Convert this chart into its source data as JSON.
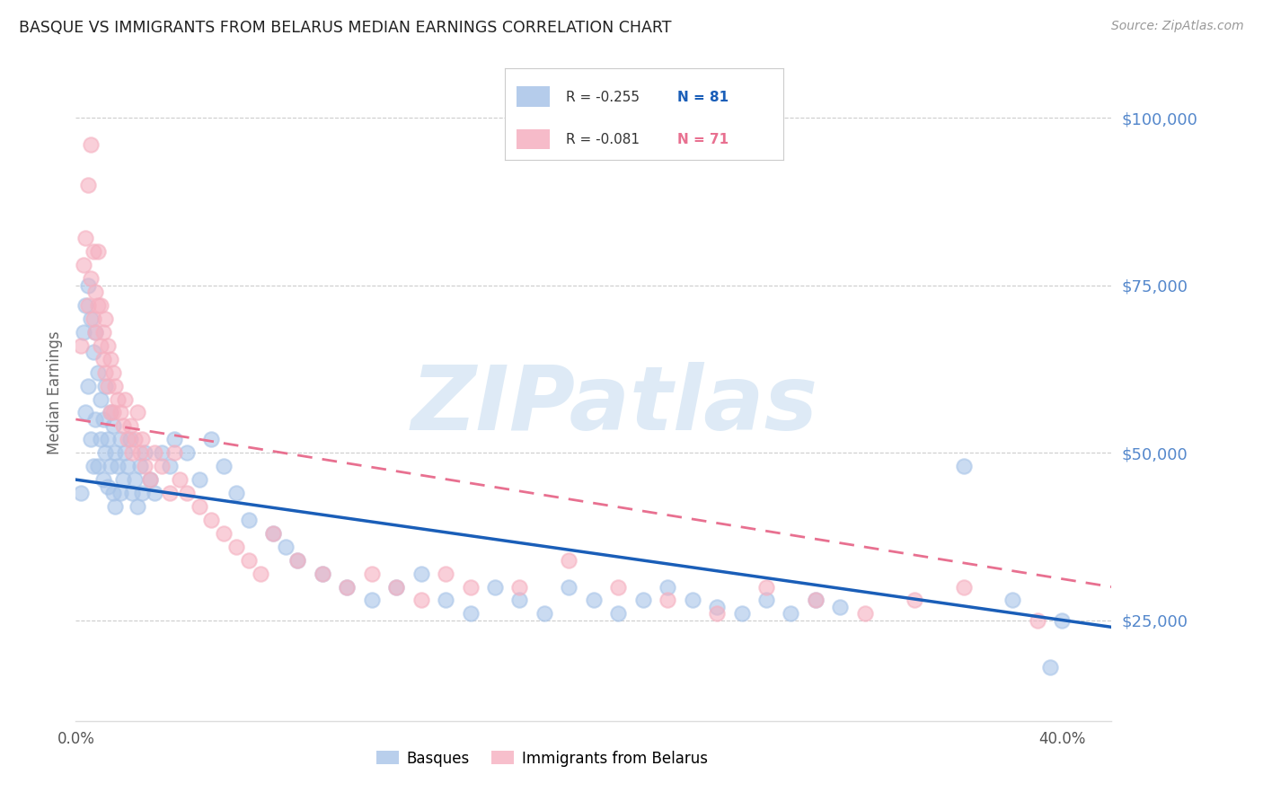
{
  "title": "BASQUE VS IMMIGRANTS FROM BELARUS MEDIAN EARNINGS CORRELATION CHART",
  "source": "Source: ZipAtlas.com",
  "ylabel": "Median Earnings",
  "xlim": [
    0.0,
    0.42
  ],
  "ylim": [
    10000,
    108000
  ],
  "ytick_vals": [
    25000,
    50000,
    75000,
    100000
  ],
  "ytick_labels": [
    "$25,000",
    "$50,000",
    "$75,000",
    "$100,000"
  ],
  "blue_color": "#a8c4e8",
  "pink_color": "#f5b0c0",
  "blue_line_color": "#1a5eb8",
  "pink_line_color": "#e87090",
  "pink_line_style": "--",
  "watermark_text": "ZIPatlas",
  "watermark_color": "#c8ddf0",
  "legend_R_blue": "R = -0.255",
  "legend_N_blue": "N = 81",
  "legend_R_pink": "R = -0.081",
  "legend_N_pink": "N = 71",
  "blue_trend_x": [
    0.0,
    0.42
  ],
  "blue_trend_y": [
    46000,
    24000
  ],
  "pink_trend_x": [
    0.0,
    0.42
  ],
  "pink_trend_y": [
    55000,
    30000
  ],
  "blue_x": [
    0.002,
    0.003,
    0.004,
    0.004,
    0.005,
    0.005,
    0.006,
    0.006,
    0.007,
    0.007,
    0.008,
    0.008,
    0.009,
    0.009,
    0.01,
    0.01,
    0.011,
    0.011,
    0.012,
    0.012,
    0.013,
    0.013,
    0.014,
    0.014,
    0.015,
    0.015,
    0.016,
    0.016,
    0.017,
    0.018,
    0.018,
    0.019,
    0.02,
    0.021,
    0.022,
    0.023,
    0.024,
    0.025,
    0.026,
    0.027,
    0.028,
    0.03,
    0.032,
    0.035,
    0.038,
    0.04,
    0.045,
    0.05,
    0.055,
    0.06,
    0.065,
    0.07,
    0.08,
    0.085,
    0.09,
    0.1,
    0.11,
    0.12,
    0.13,
    0.14,
    0.15,
    0.16,
    0.17,
    0.18,
    0.19,
    0.2,
    0.21,
    0.22,
    0.23,
    0.24,
    0.25,
    0.26,
    0.27,
    0.28,
    0.29,
    0.3,
    0.31,
    0.36,
    0.38,
    0.395,
    0.4
  ],
  "blue_y": [
    44000,
    68000,
    72000,
    56000,
    75000,
    60000,
    70000,
    52000,
    65000,
    48000,
    68000,
    55000,
    62000,
    48000,
    58000,
    52000,
    55000,
    46000,
    60000,
    50000,
    52000,
    45000,
    56000,
    48000,
    54000,
    44000,
    50000,
    42000,
    48000,
    52000,
    44000,
    46000,
    50000,
    48000,
    52000,
    44000,
    46000,
    42000,
    48000,
    44000,
    50000,
    46000,
    44000,
    50000,
    48000,
    52000,
    50000,
    46000,
    52000,
    48000,
    44000,
    40000,
    38000,
    36000,
    34000,
    32000,
    30000,
    28000,
    30000,
    32000,
    28000,
    26000,
    30000,
    28000,
    26000,
    30000,
    28000,
    26000,
    28000,
    30000,
    28000,
    27000,
    26000,
    28000,
    26000,
    28000,
    27000,
    48000,
    28000,
    18000,
    25000
  ],
  "pink_x": [
    0.002,
    0.003,
    0.004,
    0.005,
    0.005,
    0.006,
    0.006,
    0.007,
    0.007,
    0.008,
    0.008,
    0.009,
    0.009,
    0.01,
    0.01,
    0.011,
    0.011,
    0.012,
    0.012,
    0.013,
    0.013,
    0.014,
    0.014,
    0.015,
    0.015,
    0.016,
    0.017,
    0.018,
    0.019,
    0.02,
    0.021,
    0.022,
    0.023,
    0.024,
    0.025,
    0.026,
    0.027,
    0.028,
    0.03,
    0.032,
    0.035,
    0.038,
    0.04,
    0.042,
    0.045,
    0.05,
    0.055,
    0.06,
    0.065,
    0.07,
    0.075,
    0.08,
    0.09,
    0.1,
    0.11,
    0.12,
    0.13,
    0.14,
    0.15,
    0.16,
    0.18,
    0.2,
    0.22,
    0.24,
    0.26,
    0.28,
    0.3,
    0.32,
    0.34,
    0.36,
    0.39
  ],
  "pink_y": [
    66000,
    78000,
    82000,
    90000,
    72000,
    96000,
    76000,
    80000,
    70000,
    74000,
    68000,
    72000,
    80000,
    66000,
    72000,
    64000,
    68000,
    70000,
    62000,
    66000,
    60000,
    64000,
    56000,
    62000,
    56000,
    60000,
    58000,
    56000,
    54000,
    58000,
    52000,
    54000,
    50000,
    52000,
    56000,
    50000,
    52000,
    48000,
    46000,
    50000,
    48000,
    44000,
    50000,
    46000,
    44000,
    42000,
    40000,
    38000,
    36000,
    34000,
    32000,
    38000,
    34000,
    32000,
    30000,
    32000,
    30000,
    28000,
    32000,
    30000,
    30000,
    34000,
    30000,
    28000,
    26000,
    30000,
    28000,
    26000,
    28000,
    30000,
    25000
  ]
}
